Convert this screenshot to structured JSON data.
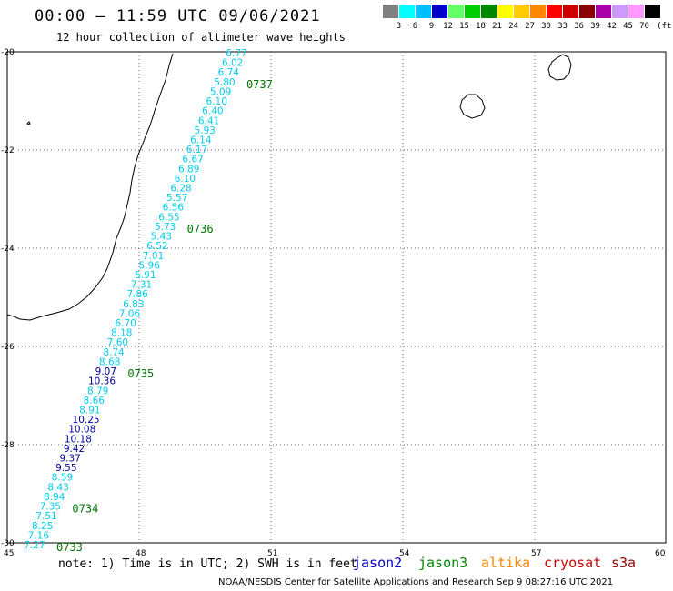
{
  "header": {
    "title": "00:00 – 11:59 UTC 09/06/2021",
    "subtitle": "12 hour collection of altimeter wave heights"
  },
  "color_scale": {
    "unit": "(ft)",
    "bins": [
      {
        "label": "3",
        "color": "#808080"
      },
      {
        "label": "6",
        "color": "#00ffff"
      },
      {
        "label": "9",
        "color": "#00bfff"
      },
      {
        "label": "12",
        "color": "#0000cc"
      },
      {
        "label": "15",
        "color": "#66ff66"
      },
      {
        "label": "18",
        "color": "#00cc00"
      },
      {
        "label": "21",
        "color": "#008800"
      },
      {
        "label": "24",
        "color": "#ffff00"
      },
      {
        "label": "27",
        "color": "#ffcc00"
      },
      {
        "label": "30",
        "color": "#ff8800"
      },
      {
        "label": "33",
        "color": "#ff0000"
      },
      {
        "label": "36",
        "color": "#cc0000"
      },
      {
        "label": "39",
        "color": "#880000"
      },
      {
        "label": "42",
        "color": "#aa00aa"
      },
      {
        "label": "45",
        "color": "#cc99ff"
      },
      {
        "label": "70",
        "color": "#ff99ff"
      },
      {
        "label": "",
        "color": "#000000"
      }
    ]
  },
  "map": {
    "lat_labels": [
      "-20",
      "-22",
      "-24",
      "-26",
      "-28",
      "-30"
    ],
    "lon_labels": [
      "45",
      "48",
      "51",
      "54",
      "57",
      "60"
    ],
    "track_color_light": "#00ccee",
    "track_color_dark": "#000099",
    "time_label_color": "#007700",
    "coast_color": "#000000",
    "grid_color": "#666666"
  },
  "track": {
    "values": [
      "6.77",
      "6.02",
      "6.74",
      "5.80",
      "5.09",
      "6.10",
      "6.40",
      "6.41",
      "5.93",
      "6.14",
      "6.17",
      "6.67",
      "6.89",
      "6.10",
      "6.28",
      "5.57",
      "6.56",
      "6.55",
      "5.73",
      "5.43",
      "6.52",
      "7.01",
      "5.96",
      "5.91",
      "7.31",
      "7.86",
      "6.83",
      "7.06",
      "6.70",
      "8.18",
      "7.60",
      "8.74",
      "8.68",
      "9.07",
      "10.36",
      "8.79",
      "8.66",
      "8.91",
      "10.25",
      "10.08",
      "10.18",
      "9.42",
      "9.37",
      "9.55",
      "8.59",
      "8.43",
      "8.94",
      "7.35",
      "7.51",
      "8.25",
      "7.16",
      "7.27"
    ],
    "times": [
      "0737",
      "0736",
      "0735",
      "0734",
      "0733"
    ]
  },
  "footer": {
    "note": "note: 1) Time is in UTC; 2) SWH is in feet",
    "satellites": [
      {
        "name": "jason2",
        "color": "#0000cc"
      },
      {
        "name": "jason3",
        "color": "#008800"
      },
      {
        "name": "altika",
        "color": "#ff8800"
      },
      {
        "name": "cryosat",
        "color": "#cc0000"
      },
      {
        "name": "s3a",
        "color": "#990000"
      }
    ],
    "credit": "NOAA/NESDIS Center for Satellite Applications and Research   Sep  9 08:27:16 UTC 2021"
  }
}
